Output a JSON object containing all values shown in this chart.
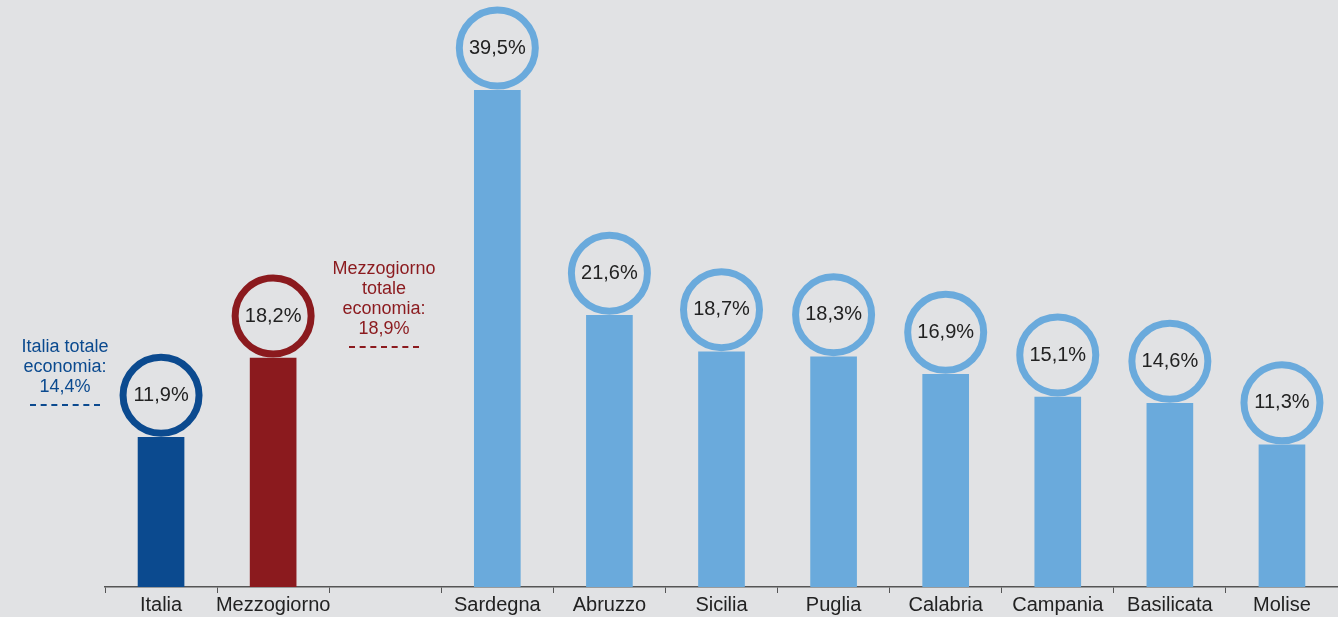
{
  "chart_data": {
    "type": "bar",
    "categories": [
      "Italia",
      "Mezzogiorno",
      null,
      "Sardegna",
      "Abruzzo",
      "Sicilia",
      "Puglia",
      "Calabria",
      "Campania",
      "Basilicata",
      "Molise"
    ],
    "values": [
      11.9,
      18.2,
      null,
      39.5,
      21.6,
      18.7,
      18.3,
      16.9,
      15.1,
      14.6,
      11.3
    ],
    "value_labels": [
      "11,9%",
      "18,2%",
      null,
      "39,5%",
      "21,6%",
      "18,7%",
      "18,3%",
      "16,9%",
      "15,1%",
      "14,6%",
      "11,3%"
    ],
    "colors": [
      "#0b4a8f",
      "#8b1a1e",
      "#6aaadc",
      "#6aaadc",
      "#6aaadc",
      "#6aaadc",
      "#6aaadc",
      "#6aaadc",
      "#6aaadc",
      "#6aaadc",
      "#6aaadc"
    ],
    "tick_labels": "x",
    "grid": false,
    "legend": false,
    "annotations": [
      "Italia totale\neconomia:\n14,4%",
      "Mezzogiorno\ntotale\neconomia:\n18,9%"
    ]
  }
}
